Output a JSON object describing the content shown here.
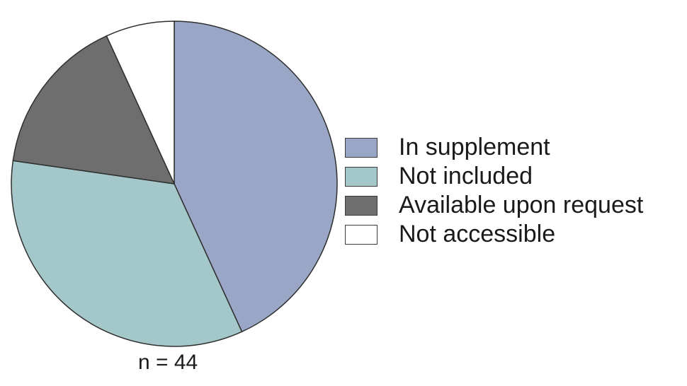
{
  "chart_data": {
    "type": "pie",
    "title": "",
    "n_label": "n = 44",
    "legend_position": "right",
    "slices": [
      {
        "label": "In supplement",
        "value": 19,
        "color": "#9aa6c6"
      },
      {
        "label": "Not included",
        "value": 15,
        "color": "#a4c8c9"
      },
      {
        "label": "Available upon request",
        "value": 7,
        "color": "#6e6e6e"
      },
      {
        "label": "Not accessible",
        "value": 3,
        "color": "#ffffff"
      }
    ]
  }
}
